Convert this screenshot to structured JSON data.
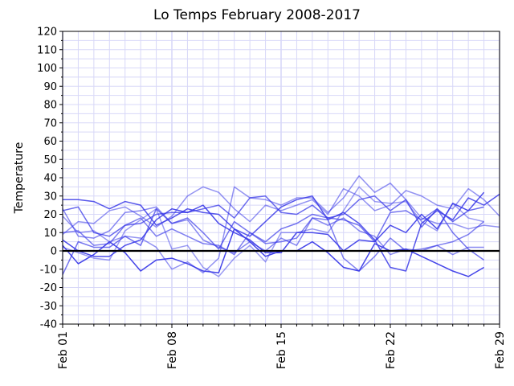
{
  "chart_data": {
    "type": "line",
    "title": "Lo Temps February 2008-2017",
    "xlabel": "",
    "ylabel": "Temperature",
    "x_tick_labels": [
      "Feb 01",
      "Feb 08",
      "Feb 15",
      "Feb 22",
      "Feb 29"
    ],
    "x_tick_days": [
      1,
      8,
      15,
      22,
      29
    ],
    "xlim": [
      1,
      29
    ],
    "ylim": [
      -40,
      120
    ],
    "y_major_step": 10,
    "y_minor_step": 5,
    "grid": "on",
    "zero_line": 0,
    "colors": {
      "series": "#3a3ae8",
      "grid": "#d8d8f8",
      "zero_line": "#000000"
    },
    "series": [
      {
        "x": [
          1,
          2,
          3,
          4,
          5,
          6,
          7,
          8,
          9,
          10,
          11,
          12,
          13,
          14,
          15,
          16,
          17,
          18,
          19,
          20,
          21,
          22,
          23,
          24,
          25,
          26,
          27,
          28,
          29
        ],
        "values": [
          28,
          28,
          27,
          23,
          27,
          25,
          14,
          18,
          23,
          21,
          20,
          12,
          8,
          16,
          24,
          28,
          30,
          17,
          21,
          15,
          6,
          -9,
          -11,
          15,
          22,
          17,
          29,
          25,
          31
        ]
      },
      {
        "x": [
          1,
          2,
          3,
          4,
          5,
          6,
          7,
          8,
          9,
          10,
          11,
          12,
          13,
          14,
          15,
          16,
          17,
          18,
          19,
          20,
          21,
          22,
          23,
          24,
          25,
          26,
          27,
          28
        ],
        "values": [
          22,
          24,
          10,
          8,
          14,
          15,
          20,
          21,
          21,
          23,
          25,
          18,
          29,
          30,
          21,
          20,
          25,
          18,
          20,
          28,
          30,
          22,
          28,
          13,
          23,
          16,
          22,
          24
        ]
      },
      {
        "x": [
          1,
          2,
          3,
          4,
          5,
          6,
          7,
          8,
          9,
          10,
          11,
          12,
          13,
          14,
          15,
          16,
          17,
          18,
          19,
          20,
          21,
          22,
          23,
          24,
          25,
          26,
          27,
          28
        ],
        "values": [
          6,
          0,
          -3,
          -3,
          3,
          6,
          17,
          23,
          21,
          25,
          15,
          10,
          6,
          -1,
          -1,
          10,
          10,
          9,
          0,
          6,
          5,
          14,
          10,
          20,
          12,
          26,
          22,
          32
        ]
      },
      {
        "x": [
          1,
          2,
          3,
          4,
          5,
          6,
          7,
          8,
          9,
          10,
          11,
          12,
          13,
          14,
          15,
          16,
          17,
          18,
          19,
          20,
          21,
          22,
          23,
          24,
          25,
          26,
          27,
          28
        ],
        "values": [
          -13,
          5,
          2,
          2,
          8,
          3,
          23,
          15,
          18,
          10,
          1,
          16,
          10,
          5,
          12,
          15,
          20,
          18,
          17,
          14,
          5,
          21,
          22,
          17,
          23,
          10,
          1,
          -5
        ]
      },
      {
        "x": [
          1,
          2,
          3,
          4,
          5,
          6,
          7,
          8,
          9,
          10,
          11,
          12,
          13,
          14,
          15,
          16,
          17,
          18,
          19,
          20,
          21,
          22,
          23,
          24,
          25,
          26,
          27,
          28
        ],
        "values": [
          3,
          -7,
          -2,
          5,
          -1,
          -11,
          -5,
          -4,
          -7,
          -11,
          -12,
          12,
          5,
          -3,
          0,
          0,
          5,
          -1,
          -9,
          -11,
          4,
          0,
          1,
          -3,
          -7,
          -11,
          -14,
          -9
        ]
      },
      {
        "x": [
          1,
          2,
          3,
          4,
          5,
          6,
          7,
          8,
          9,
          10,
          11,
          12,
          13,
          14,
          15,
          16,
          17,
          18,
          19,
          20,
          21,
          22,
          23,
          24,
          25,
          26,
          27,
          28
        ],
        "values": [
          23,
          8,
          7,
          11,
          21,
          22,
          24,
          15,
          17,
          6,
          2,
          -1,
          5,
          0,
          7,
          3,
          18,
          14,
          18,
          11,
          8,
          -2,
          1,
          0,
          3,
          -2,
          2,
          2
        ]
      },
      {
        "x": [
          1,
          2,
          3,
          4,
          5,
          6,
          7,
          8,
          9,
          10,
          11,
          12,
          13,
          14,
          15,
          16,
          17,
          18,
          19,
          20,
          21,
          22,
          23,
          24,
          25,
          26,
          27,
          28,
          29
        ],
        "values": [
          9,
          16,
          15,
          22,
          24,
          19,
          13,
          19,
          30,
          35,
          32,
          23,
          16,
          25,
          22,
          25,
          28,
          20,
          34,
          30,
          22,
          25,
          33,
          30,
          25,
          23,
          34,
          28,
          19
        ]
      },
      {
        "x": [
          1,
          2,
          3,
          4,
          5,
          6,
          7,
          8,
          9,
          10,
          11,
          12,
          13,
          14,
          15,
          16,
          17,
          18,
          19,
          20,
          21,
          22,
          23,
          24,
          25,
          26,
          27,
          28,
          29
        ],
        "values": [
          19,
          10,
          11,
          5,
          8,
          7,
          2,
          -10,
          -6,
          -12,
          -4,
          35,
          29,
          28,
          25,
          29,
          29,
          21,
          29,
          41,
          32,
          37,
          28,
          18,
          15,
          15,
          12,
          14,
          13
        ]
      },
      {
        "x": [
          1,
          2,
          3,
          4,
          5,
          6,
          7,
          8,
          9,
          10,
          11,
          12,
          13,
          14,
          15,
          16,
          17,
          18,
          19,
          20,
          21,
          22,
          23,
          24,
          25,
          26,
          27,
          28
        ],
        "values": [
          2,
          -1,
          -4,
          -5,
          11,
          17,
          23,
          1,
          3,
          -9,
          -14,
          -4,
          3,
          -6,
          10,
          10,
          12,
          10,
          22,
          35,
          27,
          26,
          27,
          16,
          11,
          26,
          18,
          16
        ]
      },
      {
        "x": [
          1,
          2,
          3,
          4,
          5,
          6,
          7,
          8,
          9,
          10,
          11,
          12,
          13,
          14,
          15,
          16,
          17,
          18,
          19,
          20,
          21,
          22,
          23,
          24,
          25,
          26,
          27,
          28
        ],
        "values": [
          10,
          11,
          3,
          4,
          14,
          18,
          8,
          12,
          8,
          4,
          3,
          -2,
          10,
          4,
          5,
          7,
          18,
          17,
          -4,
          -11,
          -3,
          7,
          0,
          1,
          3,
          5,
          9,
          16
        ]
      }
    ]
  }
}
